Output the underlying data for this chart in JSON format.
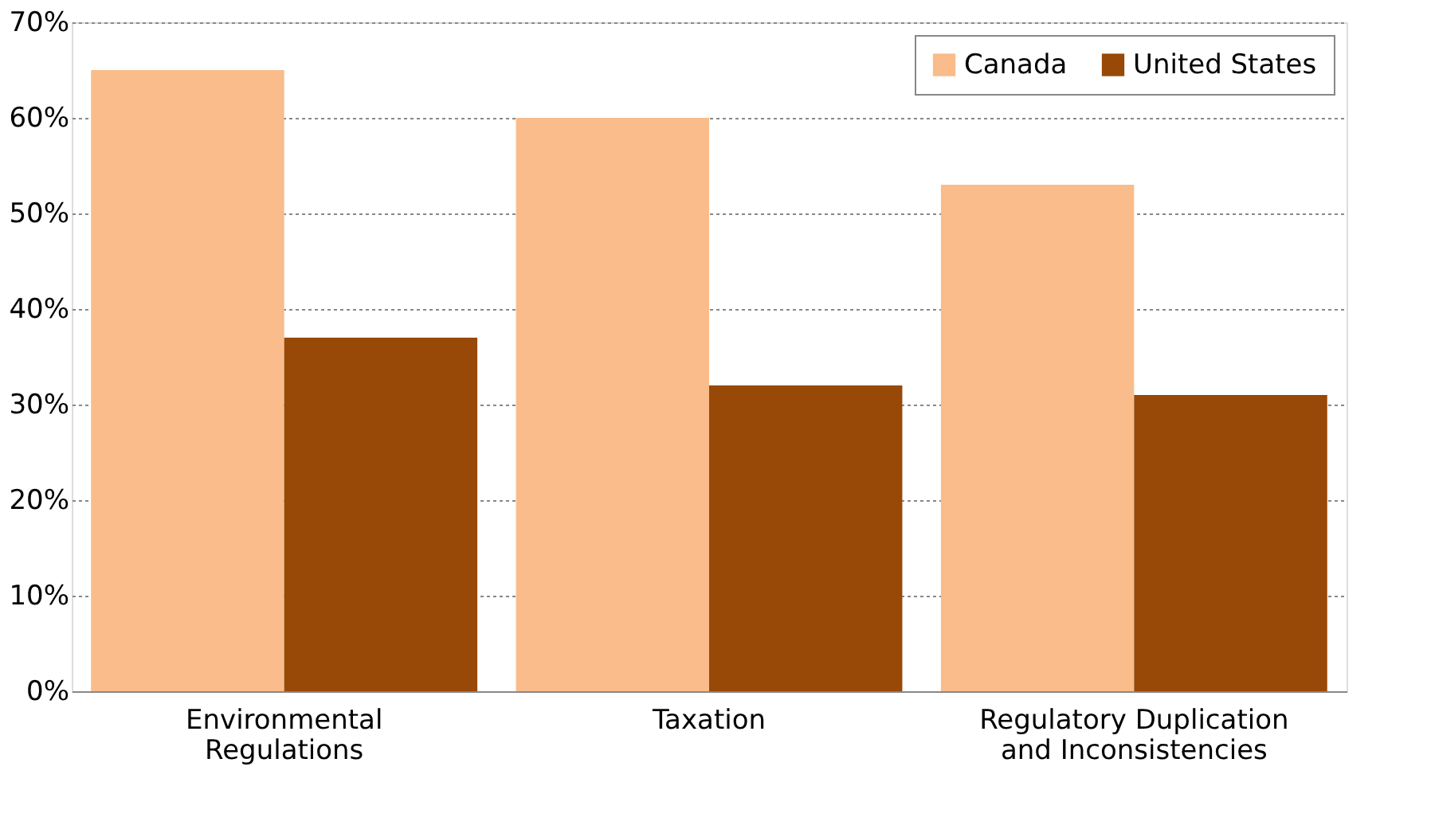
{
  "chart_data": {
    "type": "bar",
    "categories": [
      "Environmental\nRegulations",
      "Taxation",
      "Regulatory Duplication\nand Inconsistencies"
    ],
    "series": [
      {
        "name": "Canada",
        "color": "#f9bc8a",
        "values": [
          65,
          60,
          53
        ]
      },
      {
        "name": "United States",
        "color": "#984807",
        "values": [
          37,
          32,
          31
        ]
      }
    ],
    "ylim": [
      0,
      70
    ],
    "yticks": [
      {
        "value": 0,
        "label": "0%"
      },
      {
        "value": 10,
        "label": "10%"
      },
      {
        "value": 20,
        "label": "20%"
      },
      {
        "value": 30,
        "label": "30%"
      },
      {
        "value": 40,
        "label": "40%"
      },
      {
        "value": 50,
        "label": "50%"
      },
      {
        "value": 60,
        "label": "60%"
      },
      {
        "value": 70,
        "label": "70%"
      }
    ],
    "grid": "y",
    "legend": "top right"
  }
}
